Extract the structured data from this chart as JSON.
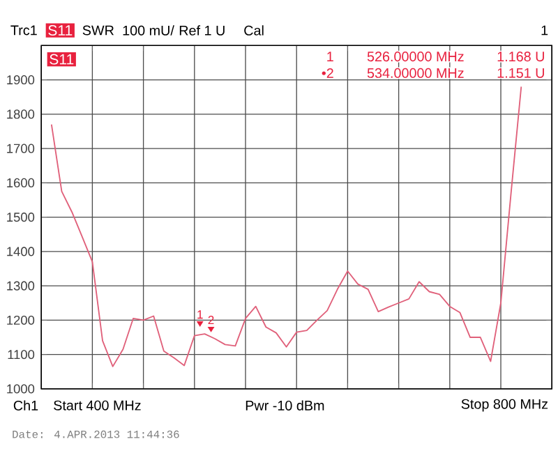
{
  "chart_data": {
    "type": "line",
    "categories": [
      null,
      null,
      null,
      null,
      null,
      null,
      null,
      null,
      null,
      null,
      null,
      null,
      null,
      null,
      null,
      null,
      null,
      null,
      null,
      null,
      null,
      null,
      null,
      null,
      null,
      null,
      null,
      null,
      null,
      null,
      null,
      null,
      null,
      null,
      null,
      null,
      null,
      null,
      null,
      null,
      null,
      null,
      null,
      null,
      null,
      null,
      null,
      null,
      null,
      null,
      null
    ],
    "ylim": [
      1000,
      2000
    ],
    "yticks": [
      1000,
      1100,
      1200,
      1300,
      1400,
      1500,
      1600,
      1700,
      1800,
      1900,
      {
        "value": 2000,
        "label": null
      }
    ],
    "grid": true,
    "series": [
      {
        "color": "#e0607a",
        "values": [
          null,
          1770,
          1575,
          1515,
          1443,
          1370,
          1140,
          1065,
          1115,
          1205,
          1200,
          1212,
          1110,
          1090,
          1068,
          1155,
          1160,
          1146,
          1129,
          1125,
          1205,
          1240,
          1180,
          1163,
          1122,
          1165,
          1170,
          1200,
          1228,
          1290,
          1343,
          1305,
          1290,
          1225,
          1238,
          1250,
          1262,
          1312,
          1283,
          1275,
          1240,
          1222,
          1150,
          1150,
          1080,
          1250,
          1570,
          1880,
          null,
          null,
          null
        ]
      }
    ],
    "annotations": [
      "Trc1",
      "S11",
      "SWR",
      "100 mU/",
      "Ref 1 U",
      "Cal",
      "1",
      "S11",
      "1",
      "526.00000 MHz",
      "1.168 U",
      "•2",
      "534.00000 MHz",
      "1.151 U",
      "Ch1",
      "Start 400 MHz",
      "Pwr -10 dBm",
      "Stop 800 MHz",
      "Date: 4.APR.2013  11:44:36",
      "1",
      "2"
    ]
  }
}
